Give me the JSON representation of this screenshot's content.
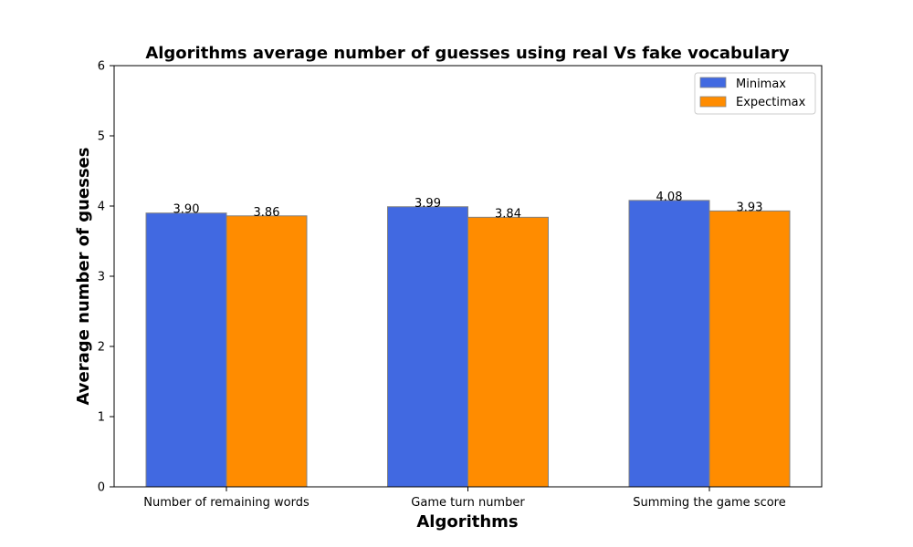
{
  "chart_data": {
    "type": "bar",
    "title": "Algorithms average number of guesses using real Vs fake vocabulary",
    "xlabel": "Algorithms",
    "ylabel": "Average number of guesses",
    "categories": [
      "Number of remaining words",
      "Game turn number",
      "Summing the game score"
    ],
    "series": [
      {
        "name": "Minimax",
        "color": "#4169E1",
        "values": [
          3.9,
          3.99,
          4.08
        ],
        "labels": [
          "3.90",
          "3.99",
          "4.08"
        ]
      },
      {
        "name": "Expectimax",
        "color": "#FF8C00",
        "values": [
          3.86,
          3.84,
          3.93
        ],
        "labels": [
          "3.86",
          "3.84",
          "3.93"
        ]
      }
    ],
    "ylim": [
      0,
      6
    ],
    "yticks": [
      0,
      1,
      2,
      3,
      4,
      5,
      6
    ],
    "ytick_labels": [
      "0",
      "1",
      "2",
      "3",
      "4",
      "5",
      "6"
    ],
    "grid": false,
    "legend_position": "top-right"
  }
}
